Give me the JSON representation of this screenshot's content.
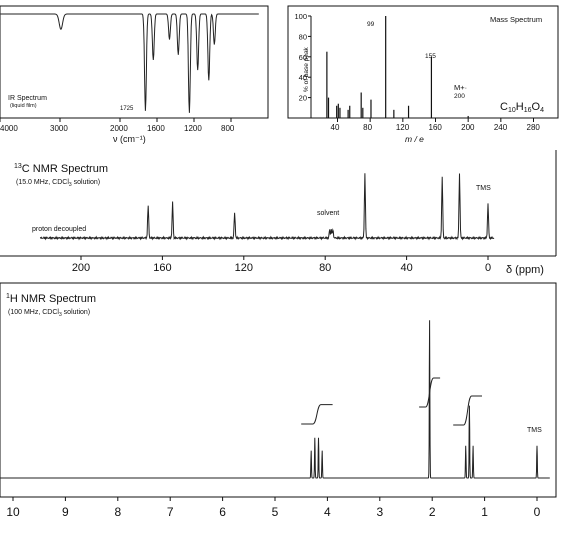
{
  "chart_data": [
    {
      "type": "line",
      "title": "IR Spectrum",
      "subtitle": "(liquid film)",
      "xlabel": "ν (cm⁻¹)",
      "xlim": [
        4000,
        400
      ],
      "x_ticks": [
        "4000",
        "3000",
        "2000",
        "1600",
        "1200",
        "800"
      ],
      "x_tick_values": [
        4000,
        3000,
        2000,
        1600,
        1200,
        800
      ],
      "annotation": "1725",
      "peaks": [
        {
          "x": 2985,
          "depth": 0.15
        },
        {
          "x": 1725,
          "depth": 0.95
        },
        {
          "x": 1640,
          "depth": 0.45
        },
        {
          "x": 1465,
          "depth": 0.25
        },
        {
          "x": 1370,
          "depth": 0.4
        },
        {
          "x": 1250,
          "depth": 0.97
        },
        {
          "x": 1160,
          "depth": 0.55
        },
        {
          "x": 1040,
          "depth": 0.65
        },
        {
          "x": 980,
          "depth": 0.3
        }
      ]
    },
    {
      "type": "bar",
      "title": "Mass Spectrum",
      "xlabel": "m / e",
      "ylabel": "% of base peak",
      "xlim": [
        0,
        320
      ],
      "ylim": [
        0,
        100
      ],
      "x_ticks": [
        40,
        80,
        120,
        160,
        200,
        240,
        280
      ],
      "y_ticks": [
        20,
        40,
        60,
        80,
        100
      ],
      "formula": "C10H16O4",
      "formula_parts": {
        "C": "C",
        "c": "10",
        "H": "H",
        "h": "16",
        "O": "O",
        "o": "4"
      },
      "mol_ion_label": "M+·",
      "mol_ion_value": "200",
      "peak_labels": [
        {
          "x": 99,
          "label": "99"
        },
        {
          "x": 155,
          "label": "155"
        }
      ],
      "x": [
        27,
        29,
        39,
        41,
        43,
        53,
        55,
        69,
        71,
        81,
        99,
        109,
        127,
        155,
        200
      ],
      "values": [
        65,
        20,
        12,
        14,
        10,
        8,
        12,
        25,
        10,
        18,
        100,
        8,
        12,
        60,
        2
      ]
    },
    {
      "type": "line",
      "title": "13C NMR Spectrum",
      "title_sup": "13",
      "title_main": "C NMR Spectrum",
      "subtitle": "(15.0 MHz, CDCl3 solution)",
      "subtitle_main": "(15.0 MHz, CDCl",
      "subtitle_sub": "3",
      "subtitle_tail": " solution)",
      "xlabel": "δ (ppm)",
      "xlim": [
        220,
        -5
      ],
      "x_ticks": [
        200,
        160,
        120,
        80,
        40,
        0
      ],
      "annotations": {
        "left": "proton decoupled",
        "solvent": "solvent",
        "tms": "TMS"
      },
      "peaks": [
        {
          "x": 167.0,
          "height": 0.45
        },
        {
          "x": 155.0,
          "height": 0.5
        },
        {
          "x": 124.5,
          "height": 0.35
        },
        {
          "x": 77.8,
          "height": 0.12
        },
        {
          "x": 77.0,
          "height": 0.12
        },
        {
          "x": 76.2,
          "height": 0.12
        },
        {
          "x": 60.5,
          "height": 0.9
        },
        {
          "x": 22.5,
          "height": 0.85
        },
        {
          "x": 14.0,
          "height": 0.9
        },
        {
          "x": 0.0,
          "height": 0.48
        }
      ]
    },
    {
      "type": "line",
      "title": "1H NMR Spectrum",
      "title_sup": "1",
      "title_main": "H NMR Spectrum",
      "subtitle": "(100 MHz, CDCl3 solution)",
      "subtitle_main": "(100 MHz, CDCl",
      "subtitle_sub": "3",
      "subtitle_tail": " solution)",
      "xlim": [
        10.5,
        -0.3
      ],
      "x_ticks": [
        10,
        9,
        8,
        7,
        6,
        5,
        4,
        3,
        2,
        1,
        0
      ],
      "annotations": {
        "tms": "TMS"
      },
      "peaks": [
        {
          "x": 4.31,
          "height": 0.17
        },
        {
          "x": 4.24,
          "height": 0.25
        },
        {
          "x": 4.17,
          "height": 0.25
        },
        {
          "x": 4.1,
          "height": 0.17
        },
        {
          "x": 2.05,
          "height": 0.98
        },
        {
          "x": 1.36,
          "height": 0.2
        },
        {
          "x": 1.29,
          "height": 0.45
        },
        {
          "x": 1.22,
          "height": 0.2
        },
        {
          "x": 0.0,
          "height": 0.2
        }
      ],
      "integrals": [
        {
          "from": 4.5,
          "to": 3.9,
          "rise": 0.12
        },
        {
          "from": 2.25,
          "to": 1.85,
          "rise": 0.18
        },
        {
          "from": 1.6,
          "to": 1.05,
          "rise": 0.18
        }
      ]
    }
  ]
}
